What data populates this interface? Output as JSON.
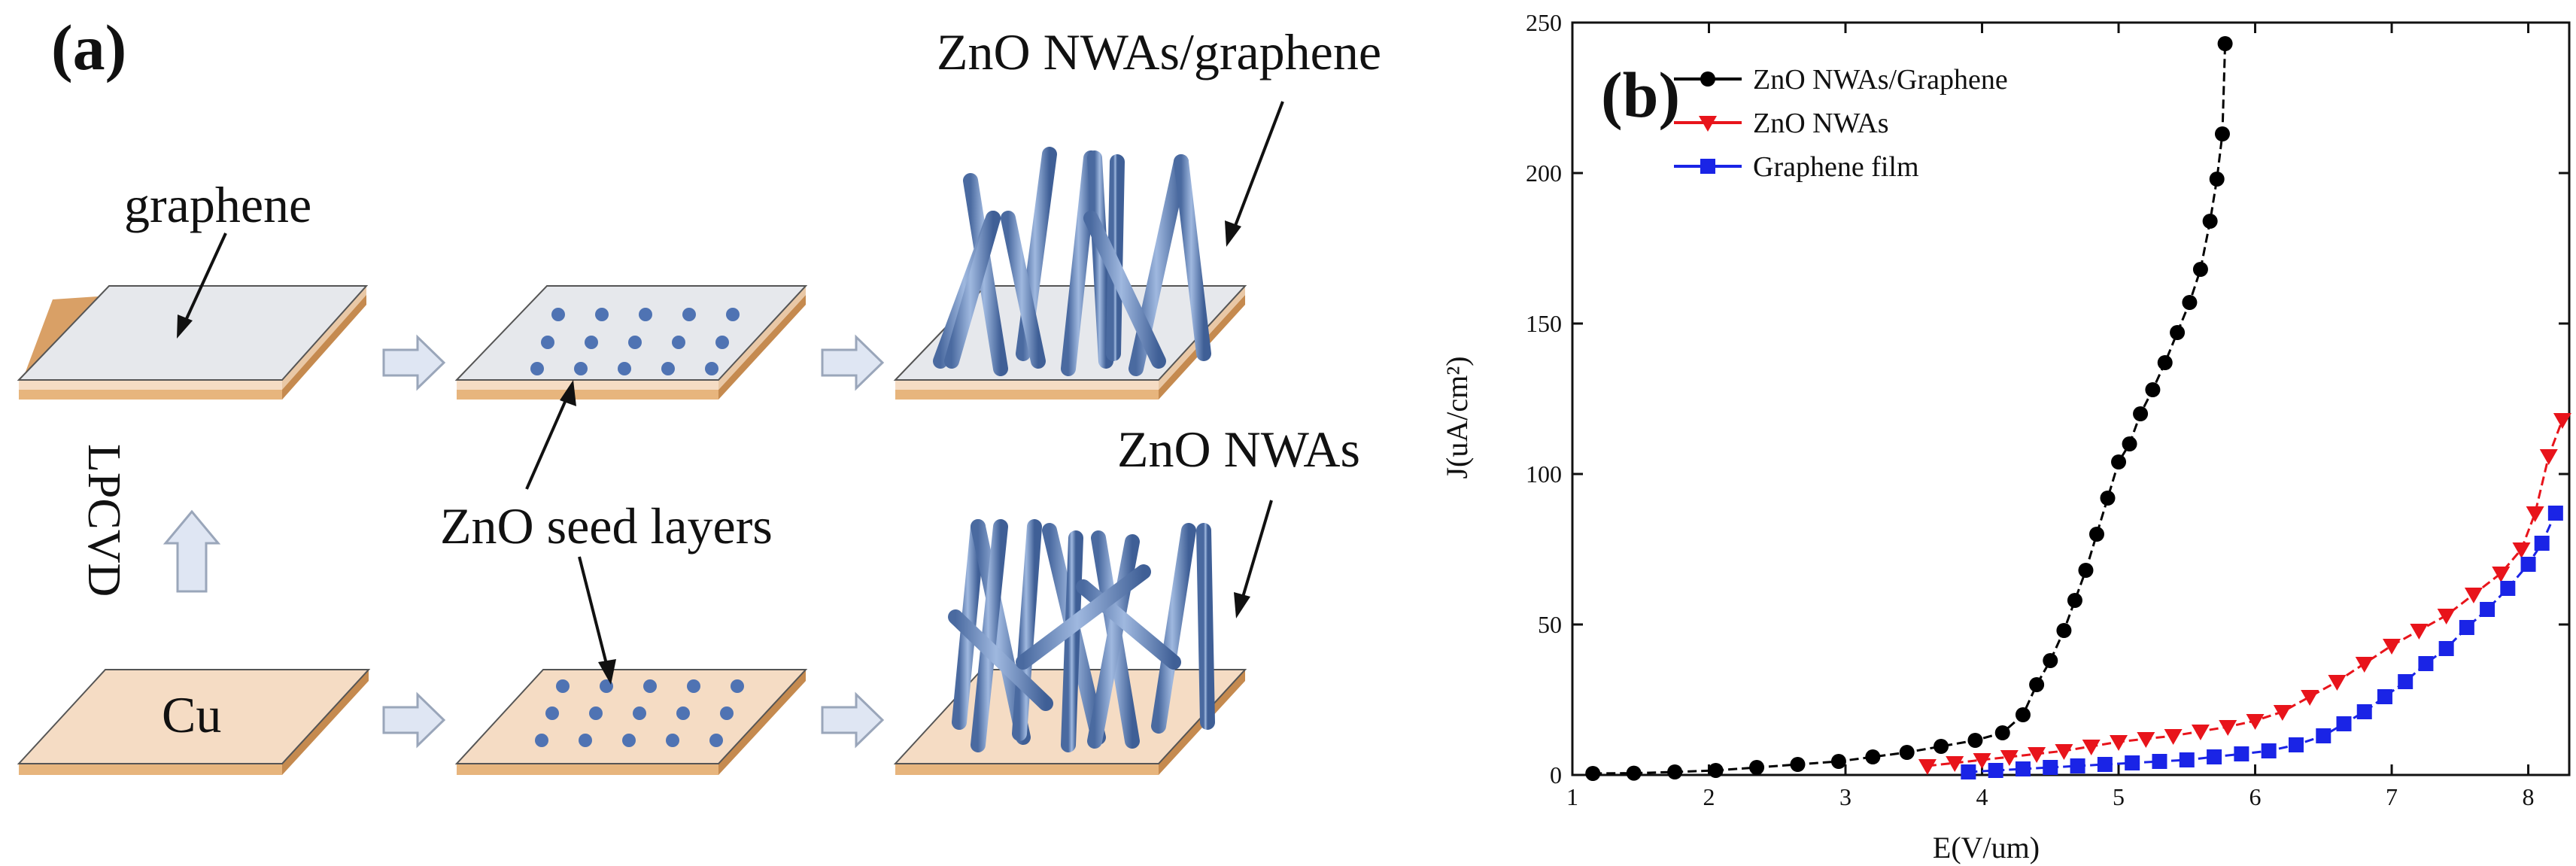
{
  "panel_a": {
    "label": "(a)",
    "graphene": "graphene",
    "zno_graphene": "ZnO NWAs/graphene",
    "zno_nwas": "ZnO NWAs",
    "seed_layers": "ZnO seed layers",
    "lpcvd": "LPCVD",
    "cu": "Cu"
  },
  "colors": {
    "copper": "#f5dcc4",
    "copper_edge": "#d9a066",
    "graphene": "#e6e8ec",
    "nanowire": "#6a8bbe",
    "arrow": "#dfe6f3"
  },
  "chart_data": {
    "type": "line",
    "panel_label": "(b)",
    "xlabel": "E(V/um)",
    "ylabel": "J(uA/cm²)",
    "xlim": [
      1,
      8.3
    ],
    "ylim": [
      0,
      250
    ],
    "xticks": [
      1,
      2,
      3,
      4,
      5,
      6,
      7,
      8
    ],
    "yticks": [
      0,
      50,
      100,
      150,
      200,
      250
    ],
    "legend_position": "top-left",
    "series": [
      {
        "name": "ZnO NWAs/Graphene",
        "color": "#000000",
        "marker": "circle",
        "x": [
          1.15,
          1.45,
          1.75,
          2.05,
          2.35,
          2.65,
          2.95,
          3.2,
          3.45,
          3.7,
          3.95,
          4.15,
          4.3,
          4.4,
          4.5,
          4.6,
          4.68,
          4.76,
          4.84,
          4.92,
          5.0,
          5.08,
          5.16,
          5.25,
          5.34,
          5.43,
          5.52,
          5.6,
          5.67,
          5.72,
          5.76,
          5.78
        ],
        "y": [
          0.5,
          0.6,
          1,
          1.5,
          2.5,
          3.5,
          4.5,
          6,
          7.5,
          9.5,
          11.5,
          14,
          20,
          30,
          38,
          48,
          58,
          68,
          80,
          92,
          104,
          110,
          120,
          128,
          137,
          147,
          157,
          168,
          184,
          198,
          213,
          243
        ]
      },
      {
        "name": "ZnO NWAs",
        "color": "#e8141b",
        "marker": "triangle-down",
        "x": [
          3.6,
          3.8,
          4.0,
          4.2,
          4.4,
          4.6,
          4.8,
          5.0,
          5.2,
          5.4,
          5.6,
          5.8,
          6.0,
          6.2,
          6.4,
          6.6,
          6.8,
          7.0,
          7.2,
          7.4,
          7.6,
          7.8,
          7.95,
          8.05,
          8.15,
          8.25
        ],
        "y": [
          3,
          4,
          5,
          6,
          7,
          8,
          9.5,
          11,
          12,
          13,
          14.5,
          16,
          18,
          21,
          26,
          31,
          37,
          43,
          48,
          53,
          60,
          67,
          75,
          87,
          106,
          118
        ]
      },
      {
        "name": "Graphene film",
        "color": "#1a24e6",
        "marker": "square",
        "x": [
          3.9,
          4.1,
          4.3,
          4.5,
          4.7,
          4.9,
          5.1,
          5.3,
          5.5,
          5.7,
          5.9,
          6.1,
          6.3,
          6.5,
          6.65,
          6.8,
          6.95,
          7.1,
          7.25,
          7.4,
          7.55,
          7.7,
          7.85,
          8.0,
          8.1,
          8.2
        ],
        "y": [
          1,
          1.5,
          2,
          2.5,
          3,
          3.5,
          4,
          4.5,
          5,
          6,
          7,
          8,
          10,
          13,
          17,
          21,
          26,
          31,
          37,
          42,
          49,
          55,
          62,
          70,
          77,
          87
        ]
      }
    ]
  }
}
